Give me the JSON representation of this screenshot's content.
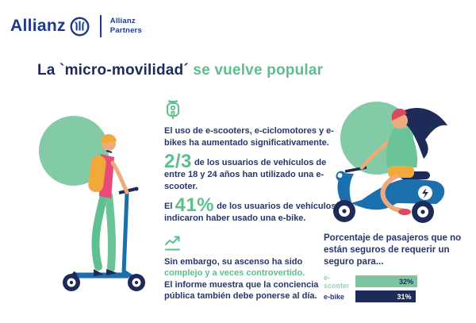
{
  "brand": {
    "wordmark": "Allianz",
    "partners_line1": "Allianz",
    "partners_line2": "Partners"
  },
  "title": {
    "part_dark": "La `micro-movilidad´ ",
    "part_green": "se vuelve popular"
  },
  "intro": {
    "text": "El uso de e-scooters, e-ciclomotores y e-bikes ha aumentado significativamente."
  },
  "stat_scooter": {
    "value": "2/3",
    "text": "de los usuarios de vehículos de entre 18 y 24 años han utilizado una e-scooter."
  },
  "stat_ebike": {
    "prefix": "El",
    "value": "41%",
    "text": "de los usuarios de vehículos indicaron haber usado una e-bike."
  },
  "caveat": {
    "line_dark_1": "Sin embargo, su ascenso ha sido",
    "line_green": "complejo y a veces controvertido.",
    "line_dark_2": "El informe muestra que la conciencia pública también debe ponerse al día."
  },
  "chart_data": {
    "type": "bar",
    "orientation": "horizontal",
    "title": "Porcentaje de pasajeros que no están seguros de requerir un seguro para...",
    "categories": [
      "e-scooter",
      "e-bike"
    ],
    "values": [
      32,
      31
    ],
    "value_labels": [
      "32%",
      "31%"
    ],
    "bar_colors": [
      "#7cc5a0",
      "#1e2b58"
    ],
    "xlim": [
      0,
      32
    ],
    "grid": false,
    "legend": false
  },
  "icons": {
    "logo": "allianz-eagle-icon",
    "scooter": "moped-outline-icon",
    "trend": "line-chart-up-icon"
  },
  "colors": {
    "navy_text": "#26386b",
    "dark_navy": "#1e2b58",
    "green_accent": "#5fbe8e",
    "circle_green": "#82cba6",
    "logo_blue": "#1d3a8c",
    "bar_green": "#7cc5a0",
    "label_green": "#9fcdb4",
    "pink": "#e84a7d",
    "yellow": "#f2a93b",
    "scooter_blue": "#1c6fad"
  }
}
